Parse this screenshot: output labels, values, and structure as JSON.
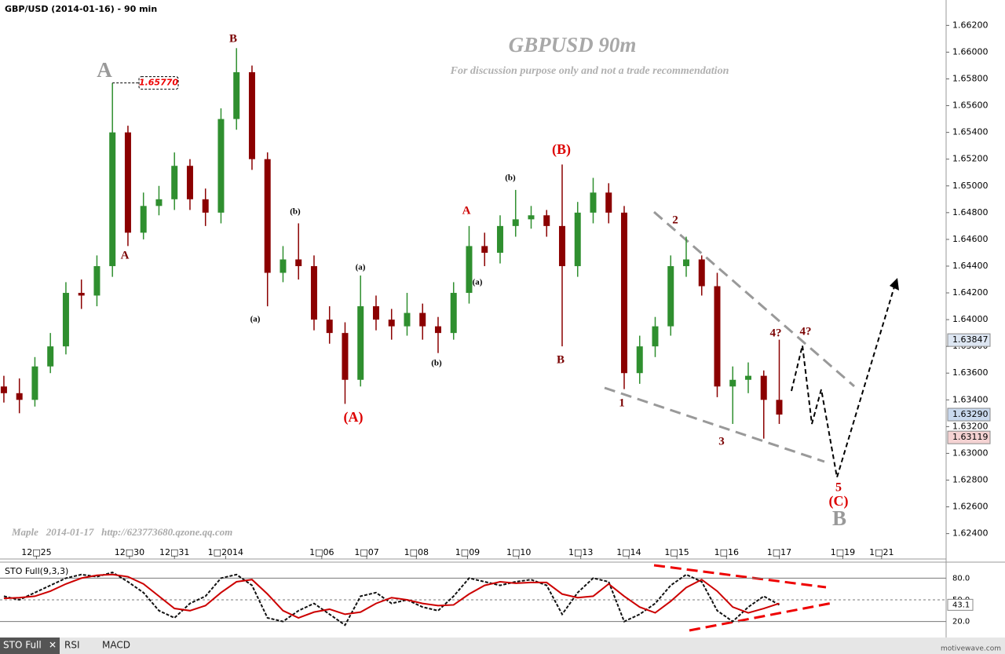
{
  "chart_data": {
    "type": "candlestick",
    "header": "GBP/USD (2014-01-16) - 90 min",
    "title": "GBPUSD 90m",
    "subtitle": "For discussion purpose only and not a trade recommendation",
    "footer": "Maple   2014-01-17   http://623773680.qzone.qq.com",
    "watermark": "motivewave.com",
    "up_color": "#2f8f2f",
    "down_color": "#8b0000",
    "x": [
      0,
      1,
      2,
      3,
      4,
      5,
      6,
      7,
      8,
      9,
      10,
      11,
      12,
      13,
      14,
      15,
      16,
      17,
      18,
      19,
      20,
      21,
      22,
      23,
      24,
      25,
      26,
      27,
      28,
      29,
      30,
      31,
      32,
      33,
      34,
      35,
      36,
      37,
      38,
      39,
      40,
      41,
      42,
      43,
      44,
      45,
      46,
      47,
      48,
      49,
      50
    ],
    "open": [
      1.635,
      1.6345,
      1.634,
      1.6365,
      1.638,
      1.642,
      1.6418,
      1.644,
      1.654,
      1.6465,
      1.6485,
      1.649,
      1.6515,
      1.649,
      1.648,
      1.655,
      1.6585,
      1.652,
      1.6435,
      1.6445,
      1.644,
      1.64,
      1.639,
      1.6355,
      1.641,
      1.64,
      1.6395,
      1.6405,
      1.6395,
      1.639,
      1.642,
      1.6455,
      1.645,
      1.647,
      1.6475,
      1.6478,
      1.647,
      1.644,
      1.648,
      1.6495,
      1.648,
      1.636,
      1.638,
      1.6395,
      1.644,
      1.6445,
      1.6425,
      1.635,
      1.6355,
      1.6358,
      1.634
    ],
    "high": [
      1.6358,
      1.6356,
      1.6372,
      1.639,
      1.6428,
      1.643,
      1.6448,
      1.6577,
      1.6545,
      1.6495,
      1.65,
      1.6525,
      1.652,
      1.6498,
      1.6558,
      1.6603,
      1.659,
      1.6525,
      1.6455,
      1.6472,
      1.6448,
      1.641,
      1.6398,
      1.6433,
      1.6418,
      1.6408,
      1.642,
      1.6412,
      1.6402,
      1.6428,
      1.647,
      1.6465,
      1.6478,
      1.6497,
      1.6485,
      1.6482,
      1.6516,
      1.6488,
      1.6506,
      1.6502,
      1.6485,
      1.6388,
      1.6402,
      1.6448,
      1.6462,
      1.6448,
      1.6435,
      1.6365,
      1.6368,
      1.6362,
      1.6385
    ],
    "low": [
      1.6338,
      1.633,
      1.6335,
      1.636,
      1.6374,
      1.6408,
      1.641,
      1.6432,
      1.6455,
      1.646,
      1.6478,
      1.6482,
      1.6482,
      1.647,
      1.6472,
      1.6542,
      1.6512,
      1.641,
      1.6428,
      1.643,
      1.6392,
      1.6382,
      1.6337,
      1.635,
      1.6392,
      1.6385,
      1.6388,
      1.6385,
      1.6375,
      1.6385,
      1.6412,
      1.644,
      1.6442,
      1.6462,
      1.6468,
      1.6462,
      1.638,
      1.6432,
      1.6472,
      1.6472,
      1.6348,
      1.6352,
      1.6372,
      1.6388,
      1.6432,
      1.6418,
      1.6342,
      1.6322,
      1.6345,
      1.6311,
      1.6322
    ],
    "close": [
      1.6345,
      1.634,
      1.6365,
      1.638,
      1.642,
      1.6418,
      1.644,
      1.654,
      1.6465,
      1.6485,
      1.649,
      1.6515,
      1.649,
      1.648,
      1.655,
      1.6585,
      1.652,
      1.6435,
      1.6445,
      1.644,
      1.64,
      1.639,
      1.6355,
      1.641,
      1.64,
      1.6395,
      1.6405,
      1.6395,
      1.639,
      1.642,
      1.6455,
      1.645,
      1.647,
      1.6475,
      1.6478,
      1.647,
      1.644,
      1.648,
      1.6495,
      1.648,
      1.636,
      1.638,
      1.6395,
      1.644,
      1.6445,
      1.6425,
      1.635,
      1.6355,
      1.6358,
      1.634,
      1.6329
    ],
    "xlim": [
      -0.25,
      60
    ],
    "xticks": [
      {
        "value": 2.1,
        "label": "12□25"
      },
      {
        "value": 8.1,
        "label": "12□30"
      },
      {
        "value": 11,
        "label": "12□31"
      },
      {
        "value": 14.3,
        "label": "1□2014"
      },
      {
        "value": 20.5,
        "label": "1□06"
      },
      {
        "value": 23.4,
        "label": "1□07"
      },
      {
        "value": 26.6,
        "label": "1□08"
      },
      {
        "value": 29.9,
        "label": "1□09"
      },
      {
        "value": 33.2,
        "label": "1□10"
      },
      {
        "value": 37.2,
        "label": "1□13"
      },
      {
        "value": 40.3,
        "label": "1□14"
      },
      {
        "value": 43.4,
        "label": "1□15"
      },
      {
        "value": 46.6,
        "label": "1□16"
      },
      {
        "value": 50,
        "label": "1□17"
      },
      {
        "value": 54.1,
        "label": "1□19"
      },
      {
        "value": 56.6,
        "label": "1□21"
      }
    ],
    "ylim": [
      1.6221,
      1.6639
    ],
    "yticks": [
      {
        "value": 1.624,
        "label": "1.62400"
      },
      {
        "value": 1.626,
        "label": "1.62600"
      },
      {
        "value": 1.628,
        "label": "1.62800"
      },
      {
        "value": 1.63,
        "label": "1.63000"
      },
      {
        "value": 1.632,
        "label": "1.63200"
      },
      {
        "value": 1.634,
        "label": "1.63400"
      },
      {
        "value": 1.636,
        "label": "1.63600"
      },
      {
        "value": 1.638,
        "label": "1.63800"
      },
      {
        "value": 1.64,
        "label": "1.64000"
      },
      {
        "value": 1.642,
        "label": "1.64200"
      },
      {
        "value": 1.644,
        "label": "1.64400"
      },
      {
        "value": 1.646,
        "label": "1.64600"
      },
      {
        "value": 1.648,
        "label": "1.64800"
      },
      {
        "value": 1.65,
        "label": "1.65000"
      },
      {
        "value": 1.652,
        "label": "1.65200"
      },
      {
        "value": 1.654,
        "label": "1.65400"
      },
      {
        "value": 1.656,
        "label": "1.65600"
      },
      {
        "value": 1.658,
        "label": "1.65800"
      },
      {
        "value": 1.66,
        "label": "1.66000"
      },
      {
        "value": 1.662,
        "label": "1.66200"
      }
    ],
    "price_tags": [
      {
        "value": 1.63847,
        "label": "1.63847",
        "color": "#dde6f2"
      },
      {
        "value": 1.6329,
        "label": "1.63290",
        "color": "#c9d9ee"
      },
      {
        "value": 1.63119,
        "label": "1.63119",
        "color": "#f4d2d2"
      }
    ],
    "high_tag": {
      "value": 1.6577,
      "label": "1.65770"
    },
    "wave_labels": [
      "A",
      "B",
      "A",
      "(b)",
      "(a)",
      "(a)",
      "(A)",
      "(b)",
      "(a)",
      "A",
      "(b)",
      "(B)",
      "B",
      "2",
      "1",
      "3",
      "4?",
      "4?",
      "5",
      "(C)",
      "B"
    ],
    "indicator": {
      "title": "STO Full(9,3,3)",
      "ylim": [
        0,
        100
      ],
      "yticks": [
        {
          "value": 20,
          "label": "20.0"
        },
        {
          "value": 50,
          "label": "50.0"
        },
        {
          "value": 80,
          "label": "80.0"
        }
      ],
      "series": [
        {
          "name": "%K",
          "color": "#111111",
          "values": [
            55,
            50,
            60,
            70,
            80,
            85,
            82,
            88,
            75,
            60,
            35,
            25,
            45,
            55,
            80,
            85,
            70,
            25,
            20,
            35,
            45,
            30,
            15,
            55,
            60,
            45,
            50,
            40,
            35,
            55,
            80,
            75,
            70,
            75,
            78,
            70,
            30,
            60,
            80,
            75,
            20,
            30,
            45,
            70,
            85,
            75,
            35,
            20,
            40,
            55,
            43.1
          ]
        },
        {
          "name": "%D",
          "color": "#cc0000",
          "values": [
            52,
            53,
            55,
            62,
            72,
            80,
            84,
            85,
            82,
            72,
            55,
            38,
            35,
            42,
            60,
            75,
            78,
            58,
            35,
            25,
            33,
            37,
            30,
            33,
            45,
            53,
            50,
            45,
            42,
            43,
            58,
            70,
            75,
            73,
            74,
            74,
            58,
            53,
            55,
            72,
            55,
            40,
            32,
            48,
            67,
            78,
            62,
            40,
            32,
            38,
            45
          ]
        }
      ],
      "last_label": "43.1"
    },
    "tabs": [
      "STO Full",
      "RSI",
      "MACD"
    ]
  }
}
